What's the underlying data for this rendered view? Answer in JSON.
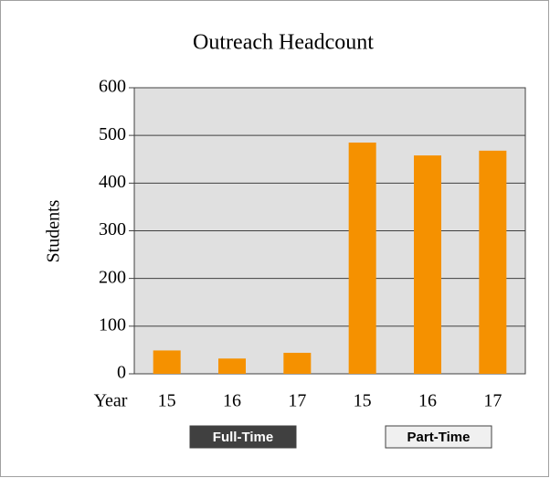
{
  "chart_data": {
    "type": "bar",
    "title": "Outreach Headcount",
    "ylabel": "Students",
    "xlabel": "Year",
    "categories": [
      "15",
      "16",
      "17",
      "15",
      "16",
      "17"
    ],
    "values": [
      49,
      32,
      44,
      485,
      458,
      468
    ],
    "groups": [
      "Full-Time",
      "Part-Time"
    ],
    "color": "#f59100",
    "ylim": [
      0,
      600
    ],
    "yticks": [
      0,
      100,
      200,
      300,
      400,
      500,
      600
    ],
    "grid": true
  }
}
